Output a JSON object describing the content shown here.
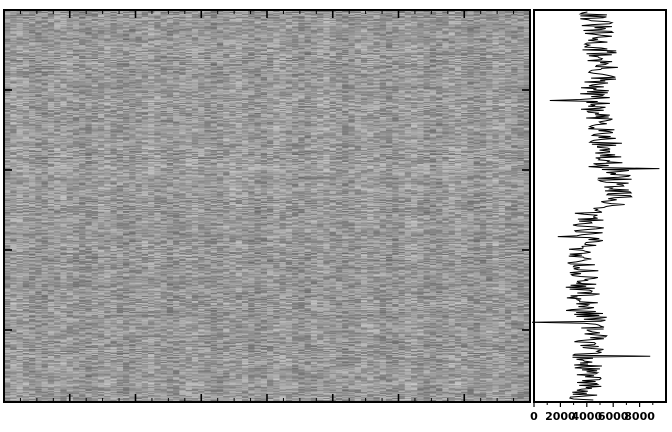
{
  "chart_data": [
    {
      "type": "heatmap",
      "colormap": "grayscale",
      "value_range": [
        0.35,
        0.85
      ],
      "rows": 400,
      "columns": 84,
      "grid": false,
      "title": "",
      "xlabel": "",
      "ylabel": "",
      "x_ticks": {
        "labeled": false,
        "major_count": 8
      },
      "y_ticks": {
        "labeled": false,
        "major_count": 4
      }
    },
    {
      "type": "line",
      "orientation": "vertical-profile",
      "title": "",
      "xlabel": "",
      "ylabel": "",
      "xlim": [
        0,
        10000
      ],
      "x_tick_labels": [
        "0",
        "2000",
        "4000",
        "6000",
        "8000"
      ],
      "x_tick_values": [
        0,
        2000,
        4000,
        6000,
        8000
      ],
      "color": "#000000",
      "baseline": 4700,
      "segments": [
        {
          "from": 0,
          "to": 40,
          "center": 4700
        },
        {
          "from": 40,
          "to": 70,
          "center": 5100
        },
        {
          "from": 70,
          "to": 110,
          "center": 4500
        },
        {
          "from": 110,
          "to": 160,
          "center": 5400
        },
        {
          "from": 160,
          "to": 200,
          "center": 6100
        },
        {
          "from": 200,
          "to": 240,
          "center": 4200
        },
        {
          "from": 240,
          "to": 310,
          "center": 3700
        },
        {
          "from": 310,
          "to": 350,
          "center": 4300
        },
        {
          "from": 350,
          "to": 400,
          "center": 4000
        }
      ],
      "spikes": [
        {
          "row": 91,
          "value": 1200
        },
        {
          "row": 161,
          "value": 9500
        },
        {
          "row": 231,
          "value": 1800
        },
        {
          "row": 319,
          "value": -500
        },
        {
          "row": 354,
          "value": 8800
        }
      ]
    }
  ]
}
